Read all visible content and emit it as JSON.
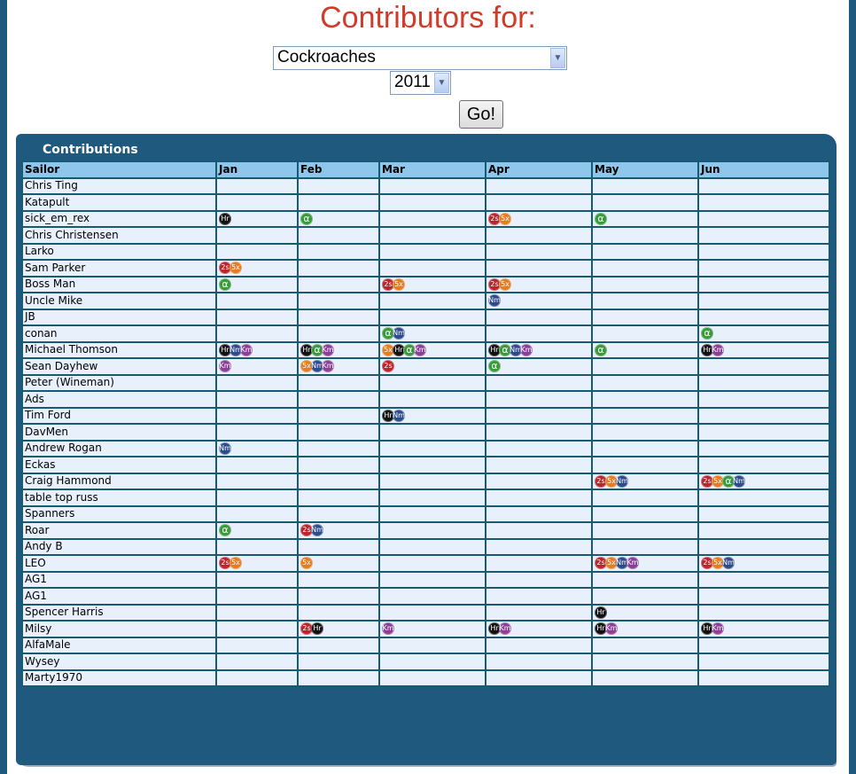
{
  "page": {
    "title": "Contributors for:"
  },
  "controls": {
    "site_select": {
      "value": "Cockroaches"
    },
    "year_select": {
      "value": "2011"
    },
    "go_label": "Go!"
  },
  "panel": {
    "title": "Contributions"
  },
  "badge_colors": {
    "2s": "#b8252d",
    "5x": "#e37d24",
    "Hr": "#111111",
    "Nm": "#2c4b8c",
    "Km": "#8b3f95",
    "α": "#3a9a3a"
  },
  "table": {
    "headers": [
      "Sailor",
      "Jan",
      "Feb",
      "Mar",
      "Apr",
      "May",
      "Jun"
    ],
    "rows": [
      {
        "sailor": "Chris Ting",
        "months": [
          [],
          [],
          [],
          [],
          [],
          []
        ]
      },
      {
        "sailor": "Katapult",
        "months": [
          [],
          [],
          [],
          [],
          [],
          []
        ]
      },
      {
        "sailor": "sick_em_rex",
        "months": [
          [
            "Hr"
          ],
          [
            "α"
          ],
          [],
          [
            "2s",
            "5x"
          ],
          [
            "α"
          ],
          []
        ]
      },
      {
        "sailor": "Chris Christensen",
        "months": [
          [],
          [],
          [],
          [],
          [],
          []
        ]
      },
      {
        "sailor": "Larko",
        "months": [
          [],
          [],
          [],
          [],
          [],
          []
        ]
      },
      {
        "sailor": "Sam Parker",
        "months": [
          [
            "2s",
            "5x"
          ],
          [],
          [],
          [],
          [],
          []
        ]
      },
      {
        "sailor": "Boss Man",
        "months": [
          [
            "α"
          ],
          [],
          [
            "2s",
            "5x"
          ],
          [
            "2s",
            "5x"
          ],
          [],
          []
        ]
      },
      {
        "sailor": "Uncle Mike",
        "months": [
          [],
          [],
          [],
          [
            "Nm"
          ],
          [],
          []
        ]
      },
      {
        "sailor": "JB",
        "months": [
          [],
          [],
          [],
          [],
          [],
          []
        ]
      },
      {
        "sailor": "conan",
        "months": [
          [],
          [],
          [
            "α",
            "Nm"
          ],
          [],
          [],
          [
            "α"
          ]
        ]
      },
      {
        "sailor": "Michael Thomson",
        "months": [
          [
            "Hr",
            "Nm",
            "Km"
          ],
          [
            "Hr",
            "α",
            "Km"
          ],
          [
            "5x",
            "Hr",
            "α",
            "Km"
          ],
          [
            "Hr",
            "α",
            "Nm",
            "Km"
          ],
          [
            "α"
          ],
          [
            "Hr",
            "Km"
          ]
        ]
      },
      {
        "sailor": "Sean Dayhew",
        "months": [
          [
            "Km"
          ],
          [
            "5x",
            "Nm",
            "Km"
          ],
          [
            "2s"
          ],
          [
            "α"
          ],
          [],
          []
        ]
      },
      {
        "sailor": "Peter (Wineman)",
        "months": [
          [],
          [],
          [],
          [],
          [],
          []
        ]
      },
      {
        "sailor": "Ads",
        "months": [
          [],
          [],
          [],
          [],
          [],
          []
        ]
      },
      {
        "sailor": "Tim Ford",
        "months": [
          [],
          [],
          [
            "Hr",
            "Nm"
          ],
          [],
          [],
          []
        ]
      },
      {
        "sailor": "DavMen",
        "months": [
          [],
          [],
          [],
          [],
          [],
          []
        ]
      },
      {
        "sailor": "Andrew Rogan",
        "months": [
          [
            "Nm"
          ],
          [],
          [],
          [],
          [],
          []
        ]
      },
      {
        "sailor": "Eckas",
        "months": [
          [],
          [],
          [],
          [],
          [],
          []
        ]
      },
      {
        "sailor": "Craig Hammond",
        "months": [
          [],
          [],
          [],
          [],
          [
            "2s",
            "5x",
            "Nm"
          ],
          [
            "2s",
            "5x",
            "α",
            "Nm"
          ]
        ]
      },
      {
        "sailor": "table top russ",
        "months": [
          [],
          [],
          [],
          [],
          [],
          []
        ]
      },
      {
        "sailor": "Spanners",
        "months": [
          [],
          [],
          [],
          [],
          [],
          []
        ]
      },
      {
        "sailor": "Roar",
        "months": [
          [
            "α"
          ],
          [
            "2s",
            "Nm"
          ],
          [],
          [],
          [],
          []
        ]
      },
      {
        "sailor": "Andy B",
        "months": [
          [],
          [],
          [],
          [],
          [],
          []
        ]
      },
      {
        "sailor": "LEO",
        "months": [
          [
            "2s",
            "5x"
          ],
          [
            "5x"
          ],
          [],
          [],
          [
            "2s",
            "5x",
            "Nm",
            "Km"
          ],
          [
            "2s",
            "5x",
            "Nm"
          ]
        ]
      },
      {
        "sailor": "AG1",
        "months": [
          [],
          [],
          [],
          [],
          [],
          []
        ]
      },
      {
        "sailor": "AG1",
        "months": [
          [],
          [],
          [],
          [],
          [],
          []
        ]
      },
      {
        "sailor": "Spencer Harris",
        "months": [
          [],
          [],
          [],
          [],
          [
            "Hr"
          ],
          []
        ]
      },
      {
        "sailor": "Milsy",
        "months": [
          [],
          [
            "2s",
            "Hr"
          ],
          [
            "Km"
          ],
          [
            "Hr",
            "Km"
          ],
          [
            "Hr",
            "Km"
          ],
          [
            "Hr",
            "Km"
          ]
        ]
      },
      {
        "sailor": "AlfaMale",
        "months": [
          [],
          [],
          [],
          [],
          [],
          []
        ]
      },
      {
        "sailor": "Wysey",
        "months": [
          [],
          [],
          [],
          [],
          [],
          []
        ]
      },
      {
        "sailor": "Marty1970",
        "months": [
          [],
          [],
          [],
          [],
          [],
          []
        ]
      }
    ]
  }
}
